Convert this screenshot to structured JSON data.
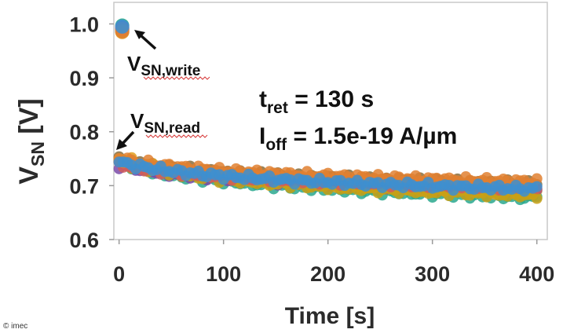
{
  "credit": "© imec",
  "chart_data": {
    "type": "scatter",
    "title": "",
    "xlabel": "Time [s]",
    "ylabel": {
      "main": "V",
      "sub": "SN",
      "rest": " [V]"
    },
    "xlim": [
      -5,
      410
    ],
    "ylim": [
      0.6,
      1.04
    ],
    "xticks": [
      "0",
      "100",
      "200",
      "300",
      "400"
    ],
    "xtick_values": [
      0,
      100,
      200,
      300,
      400
    ],
    "yticks": [
      "0.6",
      "0.7",
      "0.8",
      "0.9",
      "1.0"
    ],
    "ytick_values": [
      0.6,
      0.7,
      0.8,
      0.9,
      1.0
    ],
    "grid": false,
    "series": [
      {
        "color": "#2aa88e",
        "write": [
          3,
          0.997
        ],
        "y0": 0.742,
        "y400": 0.678
      },
      {
        "color": "#8a6d3b",
        "write": [
          3,
          0.99
        ],
        "y0": 0.748,
        "y400": 0.703
      },
      {
        "color": "#e0a020",
        "write": [
          3,
          0.985
        ],
        "y0": 0.752,
        "y400": 0.688
      },
      {
        "color": "#7a4aa8",
        "write": [
          3,
          0.993
        ],
        "y0": 0.738,
        "y400": 0.692
      },
      {
        "color": "#c8a015",
        "write": [
          3,
          0.988
        ],
        "y0": 0.745,
        "y400": 0.682
      },
      {
        "color": "#d05c5c",
        "write": [
          3,
          0.991
        ],
        "y0": 0.74,
        "y400": 0.697
      },
      {
        "color": "#e08030",
        "write": [
          3,
          0.986
        ],
        "y0": 0.75,
        "y400": 0.707
      },
      {
        "color": "#3d8fd0",
        "write": [
          3,
          0.995
        ],
        "y0": 0.744,
        "y400": 0.694
      }
    ],
    "annotations": {
      "write_label": {
        "main": "V",
        "sub": "SN,write"
      },
      "read_label": {
        "main": "V",
        "sub": "SN,read"
      },
      "tret": {
        "main": "t",
        "sub": "ret",
        "rest": " = 130 s"
      },
      "ioff": {
        "main": "I",
        "sub": "off",
        "rest": " = 1.5e-19 A/µm"
      }
    }
  }
}
